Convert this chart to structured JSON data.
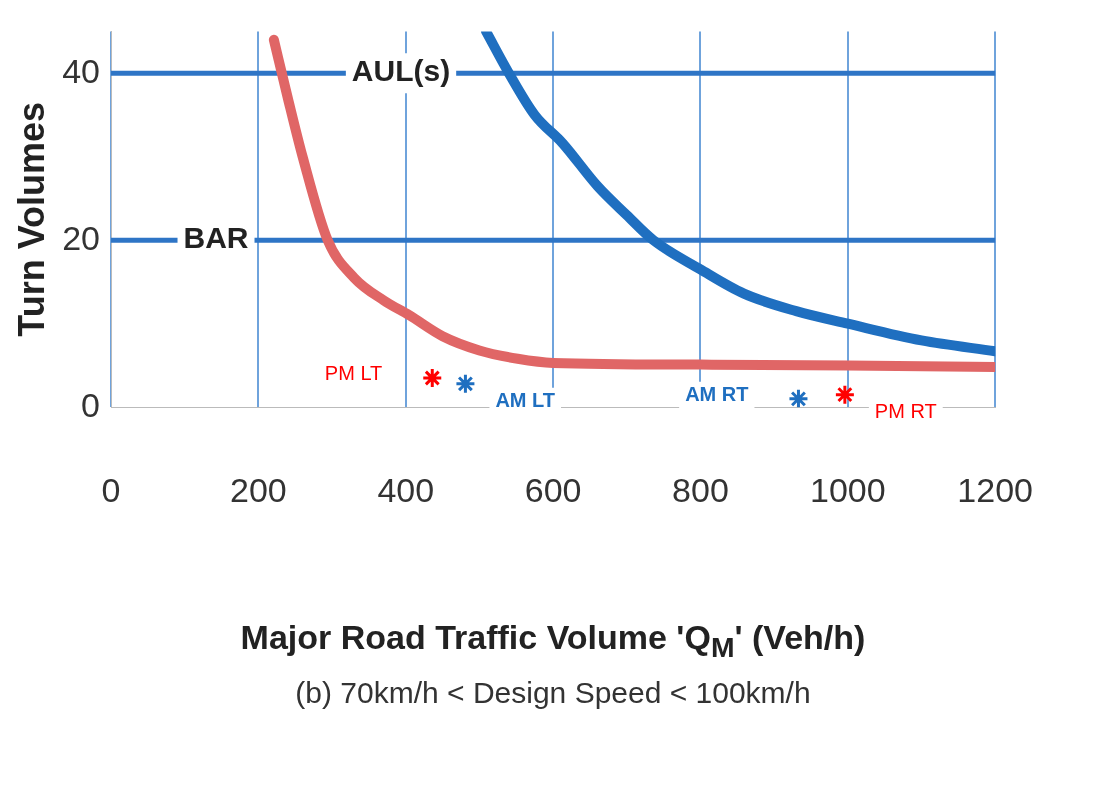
{
  "chart_data": {
    "type": "line",
    "ylabel": "Turn Volumes",
    "xlabel": "Major Road Traffic Volume 'Q$_{M}$' (Veh/h)",
    "subtitle": "(b) 70km/h < Design Speed < 100km/h",
    "xlim": [
      0,
      1200
    ],
    "xticks": [
      0,
      200,
      400,
      600,
      800,
      1000,
      1200
    ],
    "ylim": [
      0,
      45
    ],
    "yticks": [
      0,
      20,
      40
    ],
    "grid": "x",
    "legend": false,
    "ref_lines": [
      {
        "axis": "y",
        "value": 40,
        "label": "AUL(s)",
        "color": "#2e75c6"
      },
      {
        "axis": "y",
        "value": 20,
        "label": "BAR",
        "color": "#2e75c6"
      }
    ],
    "series": [
      {
        "color": "#e06666",
        "marker": "none",
        "x": [
          221,
          240,
          260,
          294,
          330,
          370,
          405,
          450,
          500,
          552,
          600,
          800,
          1000,
          1200
        ],
        "values": [
          44,
          37,
          30,
          20,
          15.5,
          12.8,
          11,
          8.5,
          6.8,
          5.8,
          5.3,
          5.1,
          5,
          4.8
        ]
      },
      {
        "color": "#1f6fc0",
        "marker": "none",
        "x": [
          509,
          540,
          575,
          613,
          660,
          700,
          736,
          800,
          859,
          930,
          1000,
          1100,
          1200
        ],
        "values": [
          45,
          40,
          35,
          31.6,
          26.5,
          23,
          20,
          16.5,
          13.6,
          11.5,
          10,
          8,
          6.7
        ]
      },
      {
        "type": "scatter",
        "name": "PM LT",
        "color": "#ff0000",
        "marker": "cross",
        "x": [
          436
        ],
        "values": [
          3.5
        ]
      },
      {
        "type": "scatter",
        "name": "AM LT",
        "color": "#1f6fc0",
        "marker": "cross",
        "x": [
          481
        ],
        "values": [
          2.8
        ]
      },
      {
        "type": "scatter",
        "name": "AM RT",
        "color": "#1f6fc0",
        "marker": "cross",
        "x": [
          933
        ],
        "values": [
          1
        ]
      },
      {
        "type": "scatter",
        "name": "PM RT",
        "color": "#ff0000",
        "marker": "cross",
        "x": [
          996
        ],
        "values": [
          1.5
        ]
      }
    ]
  }
}
